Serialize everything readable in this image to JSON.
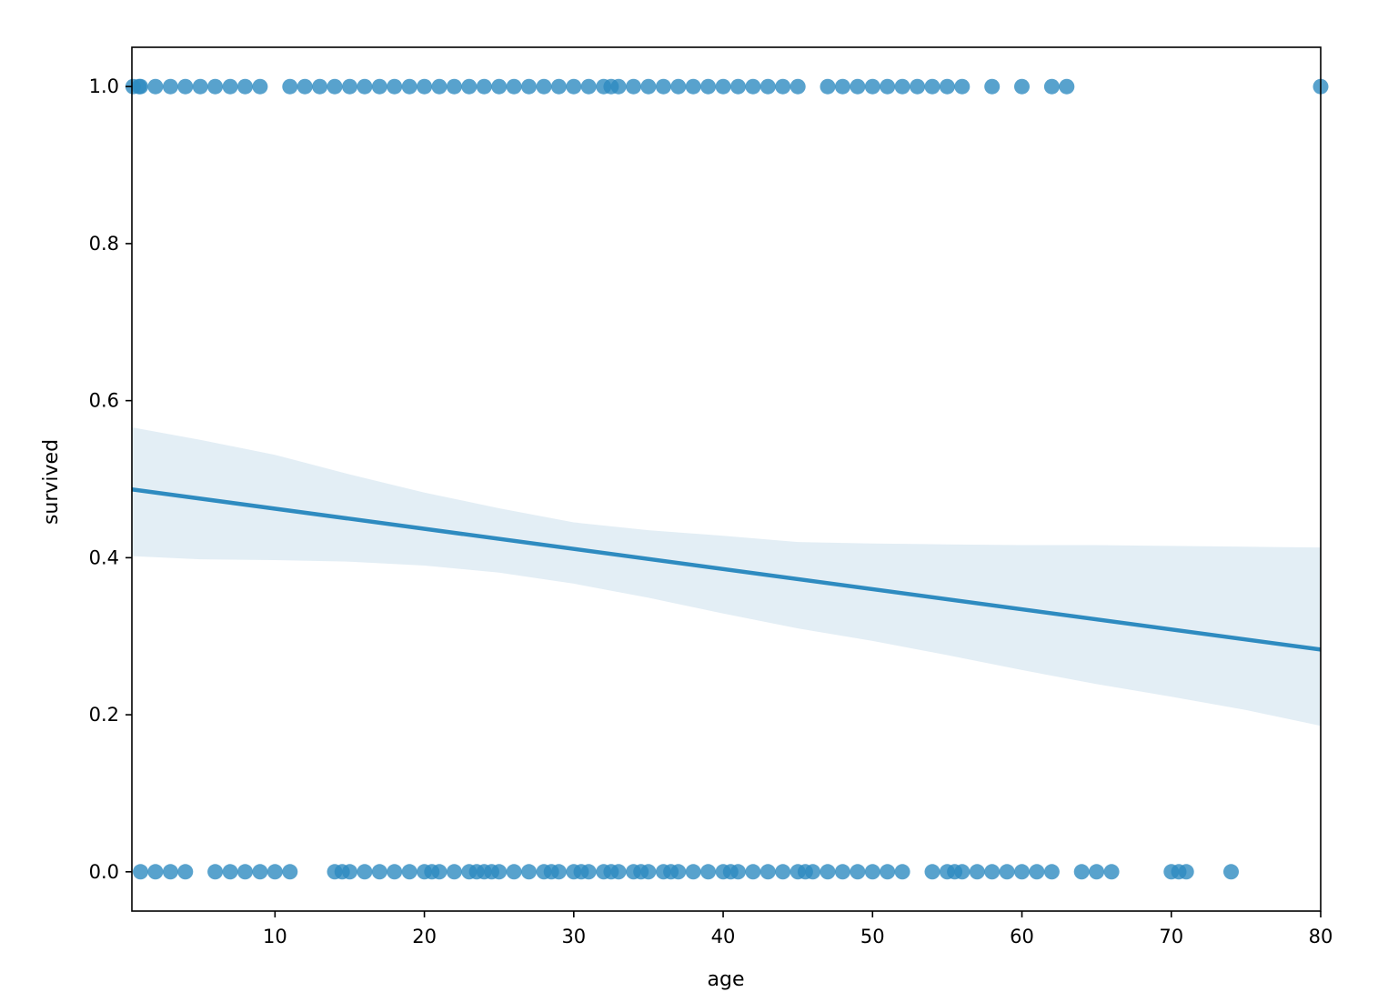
{
  "chart_data": {
    "type": "scatter",
    "title": "",
    "xlabel": "age",
    "ylabel": "survived",
    "xlim": [
      0.42,
      80
    ],
    "ylim": [
      -0.05,
      1.05
    ],
    "xticks": [
      10,
      20,
      30,
      40,
      50,
      60,
      70,
      80
    ],
    "yticks": [
      0.0,
      0.2,
      0.4,
      0.6,
      0.8,
      1.0
    ],
    "xtick_labels": [
      "10",
      "20",
      "30",
      "40",
      "50",
      "60",
      "70",
      "80"
    ],
    "ytick_labels": [
      "0.0",
      "0.2",
      "0.4",
      "0.6",
      "0.8",
      "1.0"
    ],
    "grid": false,
    "colors": {
      "points": "#2E8BC0",
      "line": "#2E8BC0",
      "band": "#D9E8F2"
    },
    "series": [
      {
        "kind": "points",
        "y": 1,
        "x": [
          0.5,
          0.9,
          1,
          2,
          3,
          4,
          5,
          6,
          7,
          8,
          9,
          11,
          12,
          13,
          14,
          15,
          16,
          17,
          18,
          19,
          20,
          21,
          22,
          23,
          24,
          25,
          26,
          27,
          28,
          29,
          30,
          31,
          32,
          32.5,
          33,
          34,
          35,
          36,
          37,
          38,
          39,
          40,
          41,
          42,
          43,
          44,
          45,
          47,
          48,
          49,
          50,
          51,
          52,
          53,
          54,
          55,
          56,
          58,
          60,
          62,
          63,
          80
        ]
      },
      {
        "kind": "points",
        "y": 0,
        "x": [
          1,
          2,
          3,
          4,
          6,
          7,
          8,
          9,
          10,
          11,
          14,
          14.5,
          15,
          16,
          17,
          18,
          19,
          20,
          20.5,
          21,
          22,
          23,
          23.5,
          24,
          24.5,
          25,
          26,
          27,
          28,
          28.5,
          29,
          30,
          30.5,
          31,
          32,
          32.5,
          33,
          34,
          34.5,
          35,
          36,
          36.5,
          37,
          38,
          39,
          40,
          40.5,
          41,
          42,
          43,
          44,
          45,
          45.5,
          46,
          47,
          48,
          49,
          50,
          51,
          52,
          54,
          55,
          55.5,
          56,
          57,
          58,
          59,
          60,
          61,
          62,
          64,
          65,
          66,
          70,
          70.5,
          71,
          74
        ]
      },
      {
        "kind": "regression",
        "x": [
          0.42,
          80
        ],
        "y": [
          0.487,
          0.283
        ]
      },
      {
        "kind": "ci-band",
        "x": [
          0.42,
          5,
          10,
          15,
          20,
          25,
          30,
          35,
          40,
          45,
          50,
          55,
          60,
          65,
          70,
          75,
          80
        ],
        "lower": [
          0.402,
          0.398,
          0.397,
          0.395,
          0.39,
          0.381,
          0.367,
          0.349,
          0.329,
          0.31,
          0.294,
          0.276,
          0.257,
          0.239,
          0.223,
          0.206,
          0.186
        ],
        "upper": [
          0.566,
          0.55,
          0.531,
          0.506,
          0.483,
          0.463,
          0.445,
          0.435,
          0.428,
          0.42,
          0.418,
          0.417,
          0.416,
          0.416,
          0.415,
          0.414,
          0.413
        ]
      }
    ]
  }
}
